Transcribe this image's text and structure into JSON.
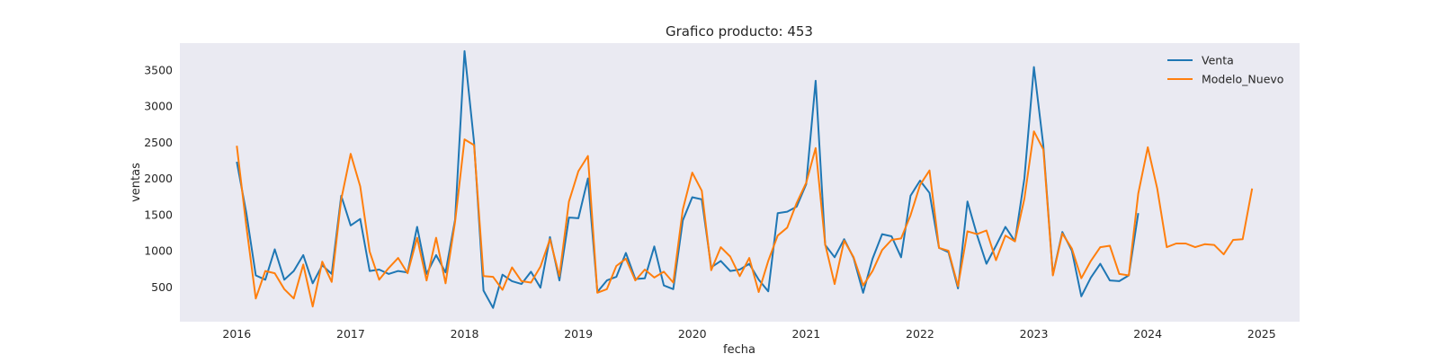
{
  "chart_data": {
    "type": "line",
    "title": "Grafico producto: 453",
    "xlabel": "fecha",
    "ylabel": "ventas",
    "xlim": [
      "2015-07-01",
      "2025-05-01"
    ],
    "ylim": [
      20,
      3870
    ],
    "x_ticks": [
      "2016",
      "2017",
      "2018",
      "2019",
      "2020",
      "2021",
      "2022",
      "2023",
      "2024",
      "2025"
    ],
    "y_ticks": [
      500,
      1000,
      1500,
      2000,
      2500,
      3000,
      3500
    ],
    "grid": false,
    "legend_position": "top-right",
    "background": "#eaeaf2",
    "series": [
      {
        "name": "Venta",
        "color": "#1f77b4",
        "x": [
          "2016-01",
          "2016-02",
          "2016-03",
          "2016-04",
          "2016-05",
          "2016-06",
          "2016-07",
          "2016-08",
          "2016-09",
          "2016-10",
          "2016-11",
          "2016-12",
          "2017-01",
          "2017-02",
          "2017-03",
          "2017-04",
          "2017-05",
          "2017-06",
          "2017-07",
          "2017-08",
          "2017-09",
          "2017-10",
          "2017-11",
          "2017-12",
          "2018-01",
          "2018-02",
          "2018-03",
          "2018-04",
          "2018-05",
          "2018-06",
          "2018-07",
          "2018-08",
          "2018-09",
          "2018-10",
          "2018-11",
          "2018-12",
          "2019-01",
          "2019-02",
          "2019-03",
          "2019-04",
          "2019-05",
          "2019-06",
          "2019-07",
          "2019-08",
          "2019-09",
          "2019-10",
          "2019-11",
          "2019-12",
          "2020-01",
          "2020-02",
          "2020-03",
          "2020-04",
          "2020-05",
          "2020-06",
          "2020-07",
          "2020-08",
          "2020-09",
          "2020-10",
          "2020-11",
          "2020-12",
          "2021-01",
          "2021-02",
          "2021-03",
          "2021-04",
          "2021-05",
          "2021-06",
          "2021-07",
          "2021-08",
          "2021-09",
          "2021-10",
          "2021-11",
          "2021-12",
          "2022-01",
          "2022-02",
          "2022-03",
          "2022-04",
          "2022-05",
          "2022-06",
          "2022-07",
          "2022-08",
          "2022-09",
          "2022-10",
          "2022-11",
          "2022-12",
          "2023-01",
          "2023-02",
          "2023-03",
          "2023-04",
          "2023-05",
          "2023-06",
          "2023-07",
          "2023-08",
          "2023-09",
          "2023-10",
          "2023-11",
          "2023-12"
        ],
        "values": [
          2230,
          1520,
          660,
          600,
          1020,
          600,
          720,
          940,
          550,
          800,
          680,
          1760,
          1350,
          1440,
          720,
          740,
          680,
          720,
          700,
          1330,
          680,
          940,
          700,
          1430,
          3760,
          2500,
          450,
          210,
          670,
          580,
          540,
          710,
          490,
          1190,
          590,
          1460,
          1450,
          2000,
          430,
          590,
          640,
          970,
          610,
          620,
          1060,
          520,
          470,
          1420,
          1740,
          1710,
          770,
          860,
          720,
          740,
          820,
          600,
          440,
          1520,
          1540,
          1610,
          1920,
          3350,
          1080,
          910,
          1160,
          900,
          420,
          890,
          1230,
          1200,
          910,
          1760,
          1970,
          1800,
          1040,
          980,
          480,
          1680,
          1220,
          820,
          1070,
          1330,
          1130,
          2000,
          3540,
          2450,
          670,
          1260,
          1000,
          370,
          630,
          820,
          590,
          580,
          660,
          1520
        ]
      },
      {
        "name": "Modelo_Nuevo",
        "color": "#ff7f0e",
        "x": [
          "2016-01",
          "2016-02",
          "2016-03",
          "2016-04",
          "2016-05",
          "2016-06",
          "2016-07",
          "2016-08",
          "2016-09",
          "2016-10",
          "2016-11",
          "2016-12",
          "2017-01",
          "2017-02",
          "2017-03",
          "2017-04",
          "2017-05",
          "2017-06",
          "2017-07",
          "2017-08",
          "2017-09",
          "2017-10",
          "2017-11",
          "2017-12",
          "2018-01",
          "2018-02",
          "2018-03",
          "2018-04",
          "2018-05",
          "2018-06",
          "2018-07",
          "2018-08",
          "2018-09",
          "2018-10",
          "2018-11",
          "2018-12",
          "2019-01",
          "2019-02",
          "2019-03",
          "2019-04",
          "2019-05",
          "2019-06",
          "2019-07",
          "2019-08",
          "2019-09",
          "2019-10",
          "2019-11",
          "2019-12",
          "2020-01",
          "2020-02",
          "2020-03",
          "2020-04",
          "2020-05",
          "2020-06",
          "2020-07",
          "2020-08",
          "2020-09",
          "2020-10",
          "2020-11",
          "2020-12",
          "2021-01",
          "2021-02",
          "2021-03",
          "2021-04",
          "2021-05",
          "2021-06",
          "2021-07",
          "2021-08",
          "2021-09",
          "2021-10",
          "2021-11",
          "2021-12",
          "2022-01",
          "2022-02",
          "2022-03",
          "2022-04",
          "2022-05",
          "2022-06",
          "2022-07",
          "2022-08",
          "2022-09",
          "2022-10",
          "2022-11",
          "2022-12",
          "2023-01",
          "2023-02",
          "2023-03",
          "2023-04",
          "2023-05",
          "2023-06",
          "2023-07",
          "2023-08",
          "2023-09",
          "2023-10",
          "2023-11",
          "2023-12",
          "2024-01",
          "2024-02",
          "2024-03",
          "2024-04",
          "2024-05",
          "2024-06",
          "2024-07",
          "2024-08",
          "2024-09",
          "2024-10",
          "2024-11",
          "2024-12"
        ],
        "values": [
          2450,
          1340,
          340,
          720,
          690,
          470,
          340,
          810,
          230,
          850,
          570,
          1710,
          2340,
          1890,
          990,
          600,
          760,
          900,
          690,
          1180,
          590,
          1180,
          550,
          1400,
          2540,
          2460,
          650,
          640,
          460,
          770,
          580,
          560,
          780,
          1160,
          650,
          1680,
          2100,
          2310,
          420,
          470,
          790,
          890,
          590,
          740,
          630,
          710,
          560,
          1570,
          2080,
          1830,
          730,
          1050,
          920,
          650,
          900,
          430,
          860,
          1210,
          1320,
          1660,
          1940,
          2420,
          1090,
          540,
          1140,
          910,
          520,
          720,
          1010,
          1150,
          1170,
          1490,
          1910,
          2110,
          1040,
          1000,
          510,
          1270,
          1230,
          1280,
          870,
          1210,
          1130,
          1720,
          2650,
          2400,
          660,
          1240,
          1030,
          620,
          860,
          1050,
          1070,
          680,
          660,
          1790,
          2430,
          1860,
          1050,
          1100,
          1100,
          1050,
          1090,
          1080,
          950,
          1150,
          1160,
          1860
        ]
      }
    ]
  }
}
